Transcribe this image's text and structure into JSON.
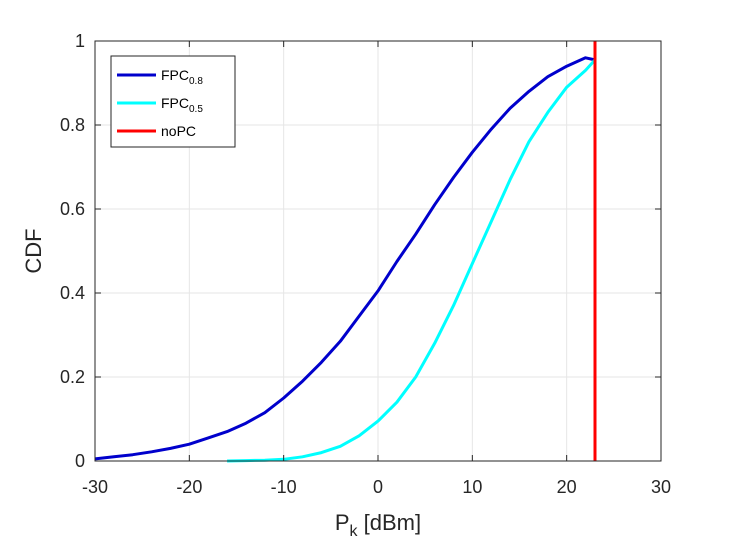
{
  "chart_data": {
    "type": "line",
    "xlabel": {
      "main": "P",
      "sub": "k",
      "rest": " [dBm]"
    },
    "ylabel": "CDF",
    "xlim": [
      -30,
      30
    ],
    "ylim": [
      0,
      1
    ],
    "xticks": [
      -30,
      -20,
      -10,
      0,
      10,
      20,
      30
    ],
    "yticks": [
      0,
      0.2,
      0.4,
      0.6,
      0.8,
      1
    ],
    "grid": true,
    "legend_position": "top-left",
    "series": [
      {
        "name": "FPC",
        "name_sub": "0.8",
        "color": "#0000cc",
        "x": [
          -30,
          -28,
          -26,
          -24,
          -22,
          -20,
          -18,
          -16,
          -14,
          -12,
          -10,
          -8,
          -6,
          -4,
          -2,
          0,
          2,
          4,
          6,
          8,
          10,
          12,
          14,
          16,
          18,
          20,
          22,
          23
        ],
        "y": [
          0.005,
          0.01,
          0.015,
          0.022,
          0.03,
          0.04,
          0.055,
          0.07,
          0.09,
          0.115,
          0.15,
          0.19,
          0.235,
          0.285,
          0.345,
          0.405,
          0.475,
          0.54,
          0.61,
          0.675,
          0.735,
          0.79,
          0.84,
          0.88,
          0.915,
          0.94,
          0.96,
          0.955
        ]
      },
      {
        "name": "FPC",
        "name_sub": "0.5",
        "color": "#00ffff",
        "x": [
          -16,
          -14,
          -12,
          -10,
          -8,
          -6,
          -4,
          -2,
          0,
          2,
          4,
          6,
          8,
          10,
          12,
          14,
          16,
          18,
          20,
          22,
          23
        ],
        "y": [
          0.0,
          0.001,
          0.002,
          0.004,
          0.01,
          0.02,
          0.035,
          0.06,
          0.095,
          0.14,
          0.2,
          0.28,
          0.37,
          0.47,
          0.57,
          0.67,
          0.76,
          0.83,
          0.89,
          0.93,
          0.955
        ]
      },
      {
        "name": "noPC",
        "name_sub": "",
        "color": "#ff0000",
        "x": [
          23,
          23
        ],
        "y": [
          0,
          1
        ]
      }
    ]
  }
}
